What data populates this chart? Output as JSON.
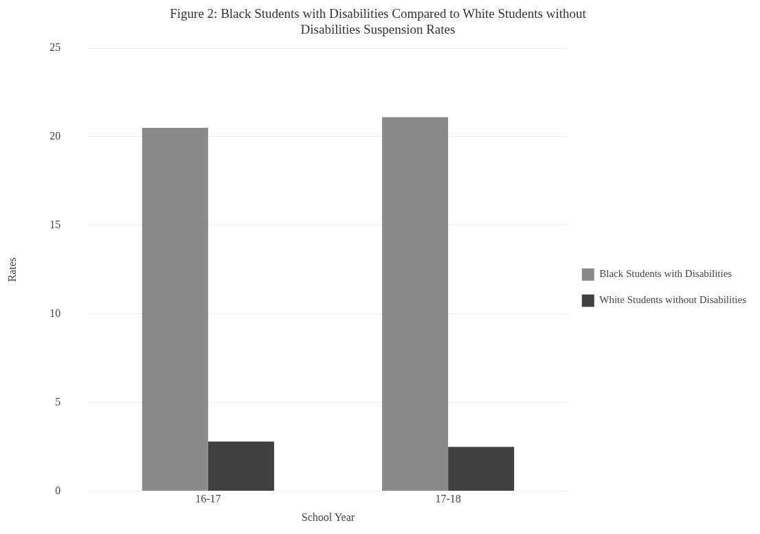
{
  "chart_data": {
    "type": "bar",
    "title": "Figure 2: Black Students with Disabilities Compared to White Students without Disabilities Suspension Rates",
    "xlabel": "School Year",
    "ylabel": "Rates",
    "categories": [
      "16-17",
      "17-18"
    ],
    "series": [
      {
        "name": "Black Students with Disabilities",
        "color": "#8a8a8a",
        "values": [
          20.5,
          21.1
        ]
      },
      {
        "name": "White Students without Disabilities",
        "color": "#404040",
        "values": [
          2.8,
          2.5
        ]
      }
    ],
    "ylim": [
      0,
      25
    ],
    "yticks": [
      0,
      5,
      10,
      15,
      20,
      25
    ],
    "grid": "y",
    "legend": "right"
  }
}
